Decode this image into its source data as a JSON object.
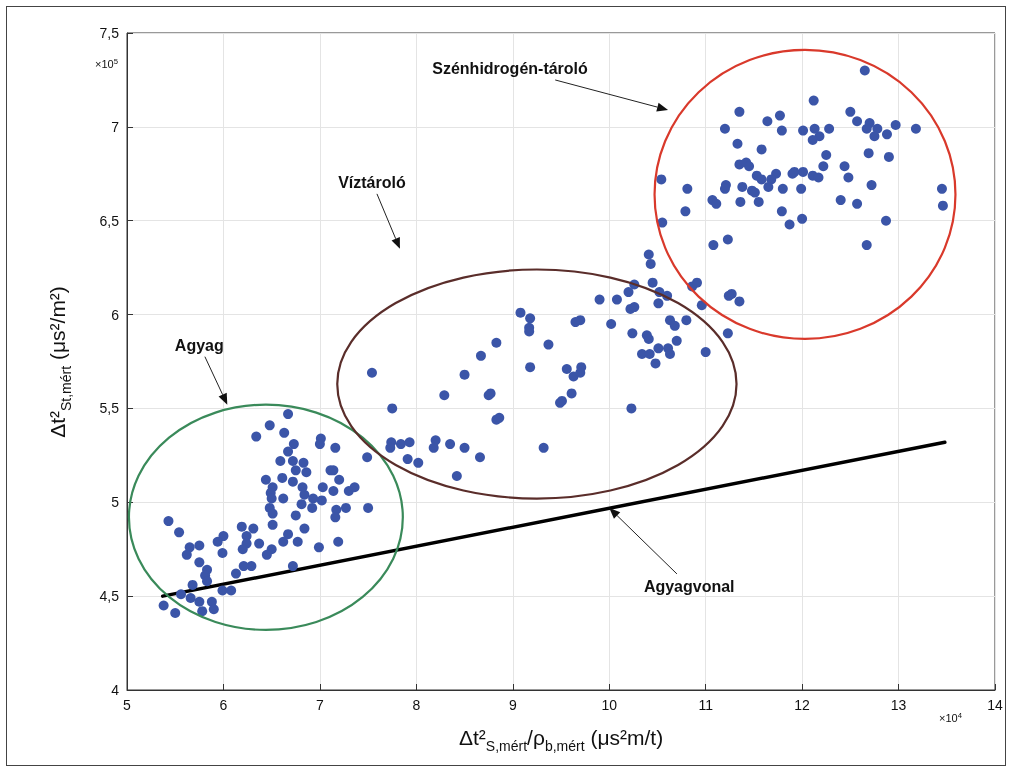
{
  "chart_data": {
    "type": "scatter",
    "xlabel": "Δt²$_{S,mért}$/ρ$_{b,mért}$ (μs²m/t)",
    "ylabel": "Δt²$_{St,mért}$ (μs²/m²)",
    "xlim": [
      5,
      14
    ],
    "xticks": [
      5,
      6,
      7,
      8,
      9,
      10,
      11,
      12,
      13,
      14
    ],
    "ylim": [
      4,
      7.5
    ],
    "yticks": [
      4,
      {
        "value": 4.5,
        "label": "4,5"
      },
      5,
      {
        "value": 5.5,
        "label": "5,5"
      },
      6,
      {
        "value": 6.5,
        "label": "6,5"
      },
      7,
      {
        "value": 7.5,
        "label": "7,5"
      }
    ],
    "grid": true,
    "marker": "circle",
    "annotations": [
      "×10$^{5}$",
      "×10$^{4}$",
      "Agyag",
      "Víztároló",
      "Szénhidrogén-tároló",
      "Agyagvonal"
    ],
    "series": [
      {
        "color": "#3b55a8",
        "x": [
          6.67,
          6.48,
          6.34,
          6.63,
          7.01,
          7.0,
          6.73,
          7.16,
          6.67,
          7.49,
          6.59,
          6.72,
          6.83,
          6.75,
          6.86,
          7.11,
          7.14,
          6.44,
          6.61,
          6.72,
          7.2,
          6.51,
          6.82,
          7.03,
          7.14,
          7.3,
          7.36,
          6.49,
          6.84,
          6.93,
          7.02,
          6.62,
          6.81,
          6.5,
          6.48,
          6.92,
          7.17,
          7.27,
          7.5,
          6.51,
          6.75,
          7.16,
          5.43,
          6.51,
          5.54,
          6.19,
          6.31,
          6.84,
          6.0,
          5.94,
          6.24,
          6.67,
          6.62,
          6.77,
          6.37,
          6.24,
          6.99,
          7.19,
          5.65,
          5.75,
          5.62,
          5.99,
          6.2,
          6.5,
          6.45,
          5.75,
          5.83,
          5.81,
          6.29,
          6.21,
          6.13,
          6.72,
          5.83,
          5.68,
          5.99,
          6.08,
          5.56,
          5.66,
          5.75,
          5.88,
          5.9,
          5.78,
          5.38,
          5.5,
          9.08,
          9.18,
          9.17,
          9.17,
          8.83,
          9.37,
          8.67,
          9.18,
          7.54,
          8.5,
          8.29,
          8.75,
          8.77,
          7.75,
          9.49,
          8.83,
          8.86,
          7.74,
          7.84,
          7.93,
          8.2,
          8.18,
          8.35,
          8.5,
          8.66,
          9.32,
          7.73,
          7.91,
          8.02,
          8.42,
          10.41,
          10.43,
          10.26,
          10.45,
          10.2,
          10.52,
          10.6,
          9.9,
          10.08,
          10.51,
          10.22,
          10.26,
          10.86,
          10.91,
          10.96,
          9.7,
          9.65,
          10.02,
          10.24,
          10.63,
          10.68,
          10.8,
          10.39,
          10.41,
          10.7,
          11.23,
          10.34,
          10.42,
          10.51,
          10.61,
          10.63,
          10.48,
          11.0,
          9.56,
          9.71,
          9.63,
          9.7,
          9.61,
          9.51,
          10.23,
          11.08,
          11.23,
          11.27,
          11.24,
          11.35,
          12.65,
          12.12,
          11.35,
          12.5,
          11.64,
          11.77,
          12.57,
          11.2,
          11.79,
          12.01,
          12.13,
          12.18,
          12.11,
          12.28,
          12.7,
          12.67,
          12.78,
          12.75,
          12.88,
          12.97,
          13.18,
          11.33,
          11.58,
          12.25,
          12.69,
          12.9,
          11.35,
          11.42,
          11.45,
          12.22,
          12.44,
          10.54,
          11.53,
          11.58,
          11.73,
          11.68,
          11.9,
          11.92,
          12.01,
          12.11,
          12.17,
          12.48,
          10.81,
          11.21,
          11.2,
          11.38,
          11.48,
          11.51,
          11.65,
          11.8,
          11.99,
          12.72,
          13.45,
          13.46,
          11.07,
          11.11,
          11.36,
          11.55,
          10.79,
          11.79,
          12.4,
          12.57,
          10.55,
          11.87,
          12.0,
          12.87,
          12.67
        ],
        "values": [
          5.47,
          5.41,
          5.35,
          5.37,
          5.34,
          5.31,
          5.31,
          5.29,
          5.27,
          5.24,
          5.22,
          5.22,
          5.21,
          5.17,
          5.16,
          5.17,
          5.17,
          5.12,
          5.13,
          5.11,
          5.12,
          5.08,
          5.08,
          5.08,
          5.06,
          5.06,
          5.08,
          5.05,
          5.04,
          5.02,
          5.01,
          5.02,
          4.99,
          5.02,
          4.97,
          4.97,
          4.96,
          4.97,
          4.97,
          4.94,
          4.93,
          4.92,
          4.9,
          4.88,
          4.84,
          4.87,
          4.86,
          4.86,
          4.82,
          4.79,
          4.82,
          4.83,
          4.79,
          4.79,
          4.78,
          4.78,
          4.76,
          4.79,
          4.76,
          4.77,
          4.72,
          4.73,
          4.75,
          4.75,
          4.72,
          4.68,
          4.64,
          4.61,
          4.66,
          4.66,
          4.62,
          4.66,
          4.58,
          4.56,
          4.53,
          4.53,
          4.51,
          4.49,
          4.47,
          4.47,
          4.43,
          4.42,
          4.45,
          4.41,
          6.01,
          5.98,
          5.93,
          5.91,
          5.85,
          5.84,
          5.78,
          5.72,
          5.69,
          5.68,
          5.57,
          5.57,
          5.58,
          5.5,
          5.53,
          5.44,
          5.45,
          5.32,
          5.31,
          5.32,
          5.33,
          5.29,
          5.31,
          5.29,
          5.24,
          5.29,
          5.29,
          5.23,
          5.21,
          5.14,
          6.32,
          6.27,
          6.16,
          6.17,
          6.12,
          6.12,
          6.1,
          6.08,
          6.08,
          6.06,
          6.03,
          6.04,
          6.15,
          6.17,
          6.05,
          5.97,
          5.96,
          5.95,
          5.9,
          5.97,
          5.94,
          5.97,
          5.89,
          5.87,
          5.86,
          5.9,
          5.79,
          5.79,
          5.82,
          5.82,
          5.79,
          5.74,
          5.8,
          5.71,
          5.72,
          5.67,
          5.69,
          5.58,
          5.54,
          5.5,
          6.37,
          6.4,
          6.11,
          6.1,
          6.07,
          7.3,
          7.14,
          7.08,
          7.08,
          7.03,
          7.06,
          7.03,
          6.99,
          6.98,
          6.98,
          6.99,
          6.95,
          6.93,
          6.99,
          7.02,
          6.99,
          6.99,
          6.95,
          6.96,
          7.01,
          6.99,
          6.91,
          6.88,
          6.85,
          6.86,
          6.84,
          6.8,
          6.81,
          6.79,
          6.79,
          6.79,
          6.72,
          6.74,
          6.72,
          6.75,
          6.72,
          6.75,
          6.76,
          6.76,
          6.74,
          6.73,
          6.73,
          6.67,
          6.69,
          6.67,
          6.68,
          6.66,
          6.65,
          6.68,
          6.67,
          6.67,
          6.69,
          6.67,
          6.58,
          6.61,
          6.59,
          6.6,
          6.6,
          6.55,
          6.55,
          6.61,
          6.59,
          6.49,
          6.48,
          6.51,
          6.5,
          6.37
        ]
      },
      {
        "type": "line",
        "color": "#000000",
        "marker": "none",
        "line_style": "solid",
        "x": [
          5.37,
          13.48
        ],
        "values": [
          4.5,
          5.32
        ]
      }
    ]
  }
}
